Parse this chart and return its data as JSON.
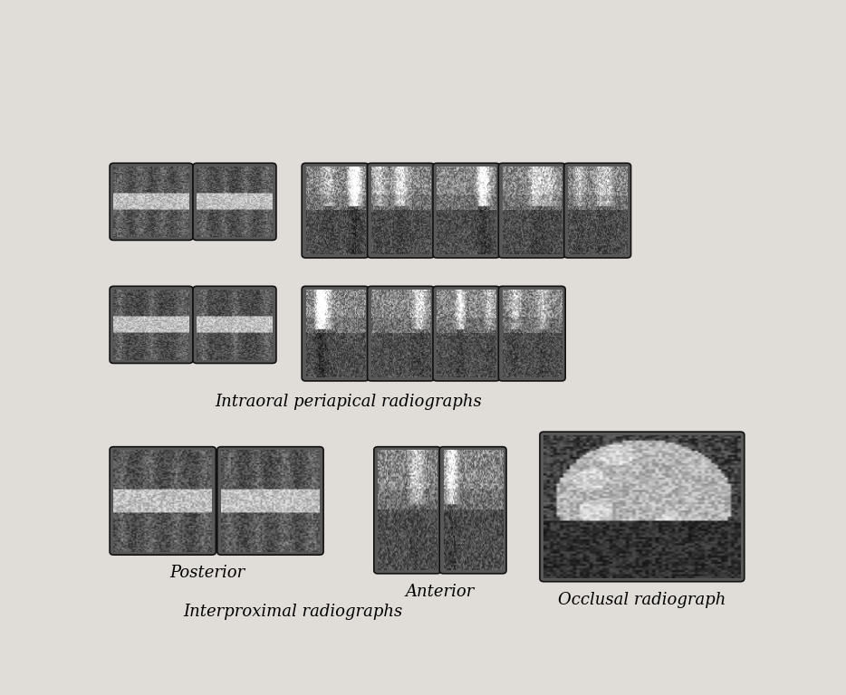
{
  "background_color": "#e0ddd8",
  "label_intraoral": "Intraoral periapical radiographs",
  "label_posterior": "Posterior",
  "label_anterior": "Anterior",
  "label_interproximal": "Interproximal radiographs",
  "label_occlusal": "Occlusal radiograph",
  "label_fontsize": 13,
  "xray_border_color": "#111111",
  "xray_bg_color": "#585858"
}
